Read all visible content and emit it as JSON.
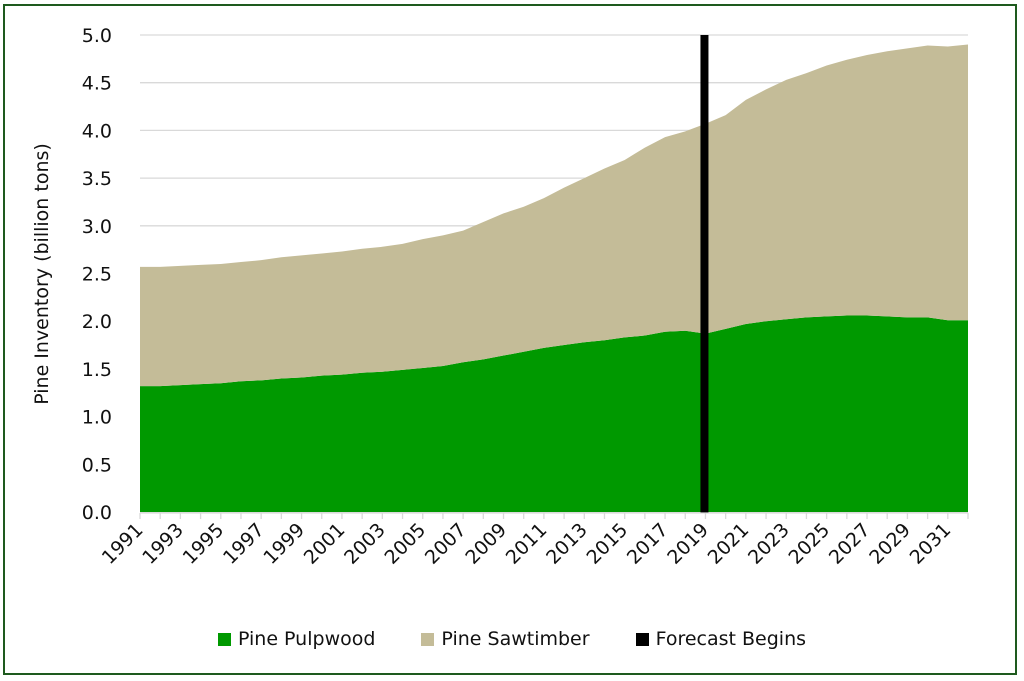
{
  "chart_data": {
    "type": "area",
    "stacked": true,
    "title": "",
    "xlabel": "",
    "ylabel": "Pine Inventory (billion tons)",
    "ylim": [
      0,
      5.0
    ],
    "yticks": [
      "0.0",
      "0.5",
      "1.0",
      "1.5",
      "2.0",
      "2.5",
      "3.0",
      "3.5",
      "4.0",
      "4.5",
      "5.0"
    ],
    "xtick_labels": [
      "1991",
      "1993",
      "1995",
      "1997",
      "1999",
      "2001",
      "2003",
      "2005",
      "2007",
      "2009",
      "2011",
      "2013",
      "2015",
      "2017",
      "2019",
      "2021",
      "2023",
      "2025",
      "2027",
      "2029",
      "2031"
    ],
    "x": [
      1991,
      1992,
      1993,
      1994,
      1995,
      1996,
      1997,
      1998,
      1999,
      2000,
      2001,
      2002,
      2003,
      2004,
      2005,
      2006,
      2007,
      2008,
      2009,
      2010,
      2011,
      2012,
      2013,
      2014,
      2015,
      2016,
      2017,
      2018,
      2019,
      2020,
      2021,
      2022,
      2023,
      2024,
      2025,
      2026,
      2027,
      2028,
      2029,
      2030,
      2031,
      2032
    ],
    "series": [
      {
        "name": "Pine Pulpwood",
        "color": "#009900",
        "values": [
          1.32,
          1.32,
          1.33,
          1.34,
          1.35,
          1.37,
          1.38,
          1.4,
          1.41,
          1.43,
          1.44,
          1.46,
          1.47,
          1.49,
          1.51,
          1.53,
          1.57,
          1.6,
          1.64,
          1.68,
          1.72,
          1.75,
          1.78,
          1.8,
          1.83,
          1.85,
          1.89,
          1.9,
          1.87,
          1.92,
          1.97,
          2.0,
          2.02,
          2.04,
          2.05,
          2.06,
          2.06,
          2.05,
          2.04,
          2.04,
          2.01,
          2.01
        ]
      },
      {
        "name": "Pine Sawtimber",
        "color": "#c4bc98",
        "values": [
          1.25,
          1.25,
          1.25,
          1.25,
          1.25,
          1.25,
          1.26,
          1.27,
          1.28,
          1.28,
          1.29,
          1.3,
          1.31,
          1.32,
          1.35,
          1.37,
          1.38,
          1.44,
          1.49,
          1.52,
          1.57,
          1.65,
          1.72,
          1.8,
          1.86,
          1.97,
          2.04,
          2.09,
          2.2,
          2.24,
          2.35,
          2.43,
          2.51,
          2.56,
          2.63,
          2.68,
          2.73,
          2.78,
          2.82,
          2.85,
          2.87,
          2.89
        ]
      }
    ],
    "annotations": [
      {
        "type": "vertical-line",
        "name": "Forecast Begins",
        "x": 2019,
        "color": "#000000"
      }
    ],
    "legend": {
      "position": "bottom",
      "entries": [
        {
          "label": "Pine Pulpwood",
          "color": "#009900"
        },
        {
          "label": "Pine Sawtimber",
          "color": "#c4bc98"
        },
        {
          "label": "Forecast Begins",
          "color": "#000000"
        }
      ]
    },
    "grid": {
      "horizontal": true,
      "vertical": false
    }
  },
  "legend": {
    "pulpwood_label": "Pine Pulpwood",
    "sawtimber_label": "Pine Sawtimber",
    "forecast_label": "Forecast Begins"
  },
  "axis": {
    "ylabel": "Pine Inventory (billion tons)"
  }
}
